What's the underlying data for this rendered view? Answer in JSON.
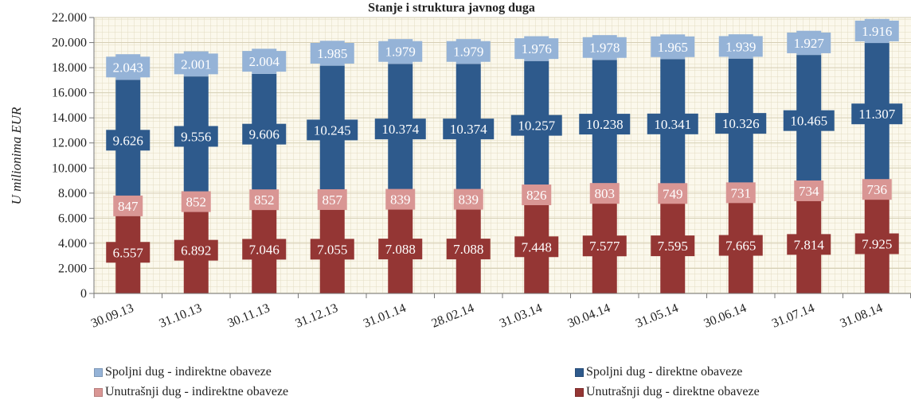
{
  "chart_data": {
    "type": "bar",
    "stacked": true,
    "title": "Stanje i struktura javnog duga",
    "xlabel": "",
    "ylabel": "U milionima EUR",
    "ylim": [
      0,
      22000
    ],
    "yticks": [
      "0",
      "2.000",
      "4.000",
      "6.000",
      "8.000",
      "10.000",
      "12.000",
      "14.000",
      "16.000",
      "18.000",
      "20.000",
      "22.000"
    ],
    "ytick_values": [
      0,
      2000,
      4000,
      6000,
      8000,
      10000,
      12000,
      14000,
      16000,
      18000,
      20000,
      22000
    ],
    "grid": true,
    "legend_position": "bottom",
    "categories": [
      "30.09.13",
      "31.10.13",
      "30.11.13",
      "31.12.13",
      "31.01.14",
      "28.02.14",
      "31.03.14",
      "30.04.14",
      "31.05.14",
      "30.06.14",
      "31.07.14",
      "31.08.14"
    ],
    "series": [
      {
        "name": "Unutrašnji dug - direktne obaveze",
        "color": "#943634",
        "values": [
          6557,
          6892,
          7046,
          7055,
          7088,
          7088,
          7448,
          7577,
          7595,
          7665,
          7814,
          7925
        ],
        "labels": [
          "6.557",
          "6.892",
          "7.046",
          "7.055",
          "7.088",
          "7.088",
          "7.448",
          "7.577",
          "7.595",
          "7.665",
          "7.814",
          "7.925"
        ]
      },
      {
        "name": "Unutrašnji dug - indirektne obaveze",
        "color": "#d99694",
        "values": [
          847,
          852,
          852,
          857,
          839,
          839,
          826,
          803,
          749,
          731,
          734,
          736
        ],
        "labels": [
          "847",
          "852",
          "852",
          "857",
          "839",
          "839",
          "826",
          "803",
          "749",
          "731",
          "734",
          "736"
        ]
      },
      {
        "name": "Spoljni dug - direktne obaveze",
        "color": "#2e5a8c",
        "values": [
          9626,
          9556,
          9606,
          10245,
          10374,
          10374,
          10257,
          10238,
          10341,
          10326,
          10465,
          11307
        ],
        "labels": [
          "9.626",
          "9.556",
          "9.606",
          "10.245",
          "10.374",
          "10.374",
          "10.257",
          "10.238",
          "10.341",
          "10.326",
          "10.465",
          "11.307"
        ]
      },
      {
        "name": "Spoljni dug - indirektne obaveze",
        "color": "#95b3d7",
        "values": [
          2043,
          2001,
          2004,
          1985,
          1979,
          1979,
          1976,
          1978,
          1965,
          1939,
          1927,
          1916
        ],
        "labels": [
          "2.043",
          "2.001",
          "2.004",
          "1.985",
          "1.979",
          "1.979",
          "1.976",
          "1.978",
          "1.965",
          "1.939",
          "1.927",
          "1.916"
        ]
      }
    ]
  },
  "legend": [
    {
      "label": "Spoljni dug - indirektne obaveze",
      "color": "#95b3d7"
    },
    {
      "label": "Spoljni dug - direktne obaveze",
      "color": "#2e5a8c"
    },
    {
      "label": "Unutrašnji dug - indirektne obaveze",
      "color": "#d99694"
    },
    {
      "label": "Unutrašnji dug - direktne obaveze",
      "color": "#943634"
    }
  ]
}
